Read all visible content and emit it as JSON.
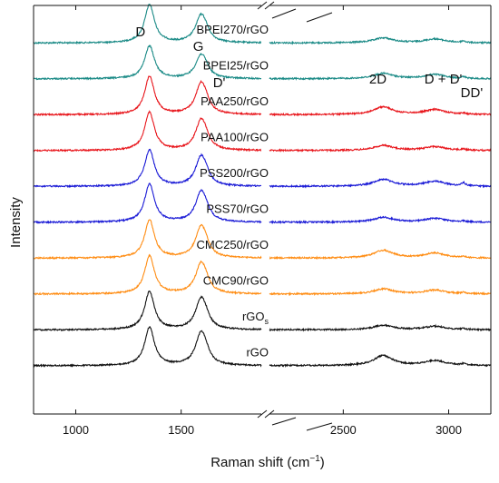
{
  "chart_data": {
    "type": "line",
    "xlabel": "Raman shift (cm",
    "xlabel_superscript": "−1",
    "xlabel_suffix": ")",
    "ylabel": "Intensity",
    "broken_x_axis": true,
    "xlim_segments": [
      [
        800,
        1880
      ],
      [
        2150,
        3200
      ]
    ],
    "x_ticks": [
      1000,
      1500,
      2500,
      3000
    ],
    "x_tick_labels": [
      "1000",
      "1500",
      "2500",
      "3000"
    ],
    "y_ticks_shown": false,
    "peak_labels": [
      {
        "text": "D",
        "x": 1350
      },
      {
        "text": "G",
        "x": 1590
      },
      {
        "text": "D'",
        "x": 1620
      },
      {
        "text": "2D",
        "x": 2690
      },
      {
        "text": "D + D'",
        "x": 2940
      },
      {
        "text": "DD'",
        "x": 3075
      }
    ],
    "series": [
      {
        "name": "BPEI270/rGO",
        "color": "#1a8a86",
        "D": 1.0,
        "G": 0.72,
        "twoD": 0.13,
        "DDp": 0.1,
        "DDpp": 0.04
      },
      {
        "name": "BPEI25/rGO",
        "color": "#1a8a86",
        "D": 0.86,
        "G": 0.62,
        "twoD": 0.14,
        "DDp": 0.11,
        "DDpp": 0.04
      },
      {
        "name": "PAA250/rGO",
        "color": "#e8161c",
        "D": 1.0,
        "G": 0.82,
        "twoD": 0.2,
        "DDp": 0.13,
        "DDpp": 0.03
      },
      {
        "name": "PAA100/rGO",
        "color": "#e8161c",
        "D": 1.0,
        "G": 0.8,
        "twoD": 0.13,
        "DDp": 0.1,
        "DDpp": 0.03
      },
      {
        "name": "PSS200/rGO",
        "color": "#1a1ad6",
        "D": 0.95,
        "G": 0.78,
        "twoD": 0.18,
        "DDp": 0.13,
        "DDpp": 0.08
      },
      {
        "name": "PSS70/rGO",
        "color": "#1a1ad6",
        "D": 1.0,
        "G": 0.8,
        "twoD": 0.13,
        "DDp": 0.1,
        "DDpp": 0.03
      },
      {
        "name": "CMC250/rGO",
        "color": "#ff8c12",
        "D": 1.0,
        "G": 0.82,
        "twoD": 0.2,
        "DDp": 0.13,
        "DDpp": 0.03
      },
      {
        "name": "CMC90/rGO",
        "color": "#ff8c12",
        "D": 1.0,
        "G": 0.8,
        "twoD": 0.13,
        "DDp": 0.1,
        "DDpp": 0.03
      },
      {
        "name": "rGO",
        "name_subscript": "s",
        "color": "#111111",
        "D": 1.0,
        "G": 0.82,
        "twoD": 0.12,
        "DDp": 0.09,
        "DDpp": 0.03
      },
      {
        "name": "rGO",
        "color": "#111111",
        "D": 1.0,
        "G": 0.86,
        "twoD": 0.26,
        "DDp": 0.13,
        "DDpp": 0.04
      }
    ]
  }
}
